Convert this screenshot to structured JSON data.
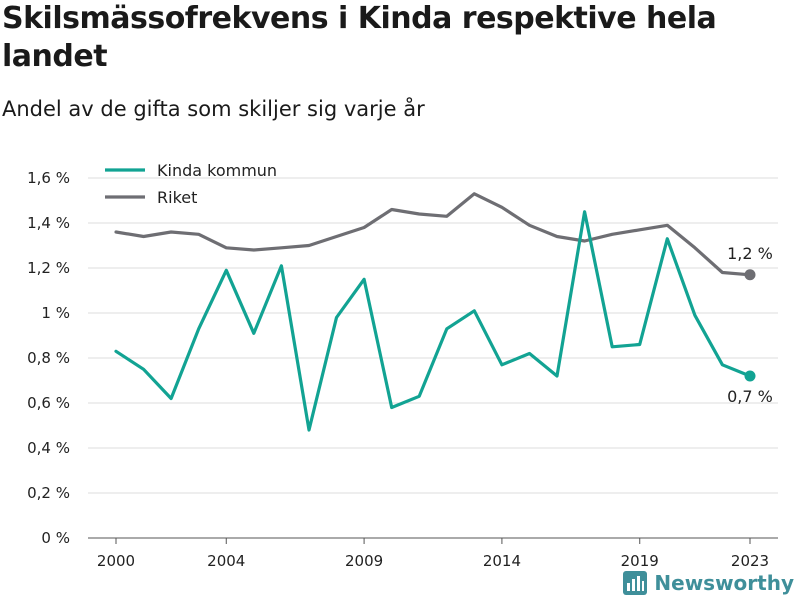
{
  "title": "Skilsmässofrekvens i Kinda respektive hela landet",
  "subtitle": "Andel av de gifta som skiljer sig varje år",
  "brand": {
    "name": "Newsworthy",
    "icon": "bar-chart-logo-icon",
    "color": "#3f8f9a"
  },
  "chart_data": {
    "type": "line",
    "title": "Skilsmässofrekvens i Kinda respektive hela landet",
    "subtitle": "Andel av de gifta som skiljer sig varje år",
    "x": [
      2000,
      2001,
      2002,
      2003,
      2004,
      2005,
      2006,
      2007,
      2008,
      2009,
      2010,
      2011,
      2012,
      2013,
      2014,
      2015,
      2016,
      2017,
      2018,
      2019,
      2020,
      2021,
      2022,
      2023
    ],
    "xticks": [
      2000,
      2004,
      2009,
      2014,
      2019,
      2023
    ],
    "ylim": [
      0,
      1.6
    ],
    "yticks": [
      0,
      0.2,
      0.4,
      0.6,
      0.8,
      1.0,
      1.2,
      1.4,
      1.6
    ],
    "ytick_labels": [
      "0 %",
      "0,2 %",
      "0,4 %",
      "0,6 %",
      "0,8 %",
      "1 %",
      "1,2 %",
      "1,4 %",
      "1,6 %"
    ],
    "grid": true,
    "legend_position": "top-left",
    "series": [
      {
        "name": "Kinda kommun",
        "color": "#12a393",
        "end_label": "0,7 %",
        "values": [
          0.83,
          0.75,
          0.62,
          0.93,
          1.19,
          0.91,
          1.21,
          0.48,
          0.98,
          1.15,
          0.58,
          0.63,
          0.93,
          1.01,
          0.77,
          0.82,
          0.72,
          1.45,
          0.85,
          0.86,
          1.33,
          0.99,
          0.77,
          0.72
        ]
      },
      {
        "name": "Riket",
        "color": "#6e6e73",
        "end_label": "1,2 %",
        "values": [
          1.36,
          1.34,
          1.36,
          1.35,
          1.29,
          1.28,
          1.29,
          1.3,
          1.34,
          1.38,
          1.46,
          1.44,
          1.43,
          1.53,
          1.47,
          1.39,
          1.34,
          1.32,
          1.35,
          1.37,
          1.39,
          1.29,
          1.18,
          1.17
        ]
      }
    ]
  }
}
